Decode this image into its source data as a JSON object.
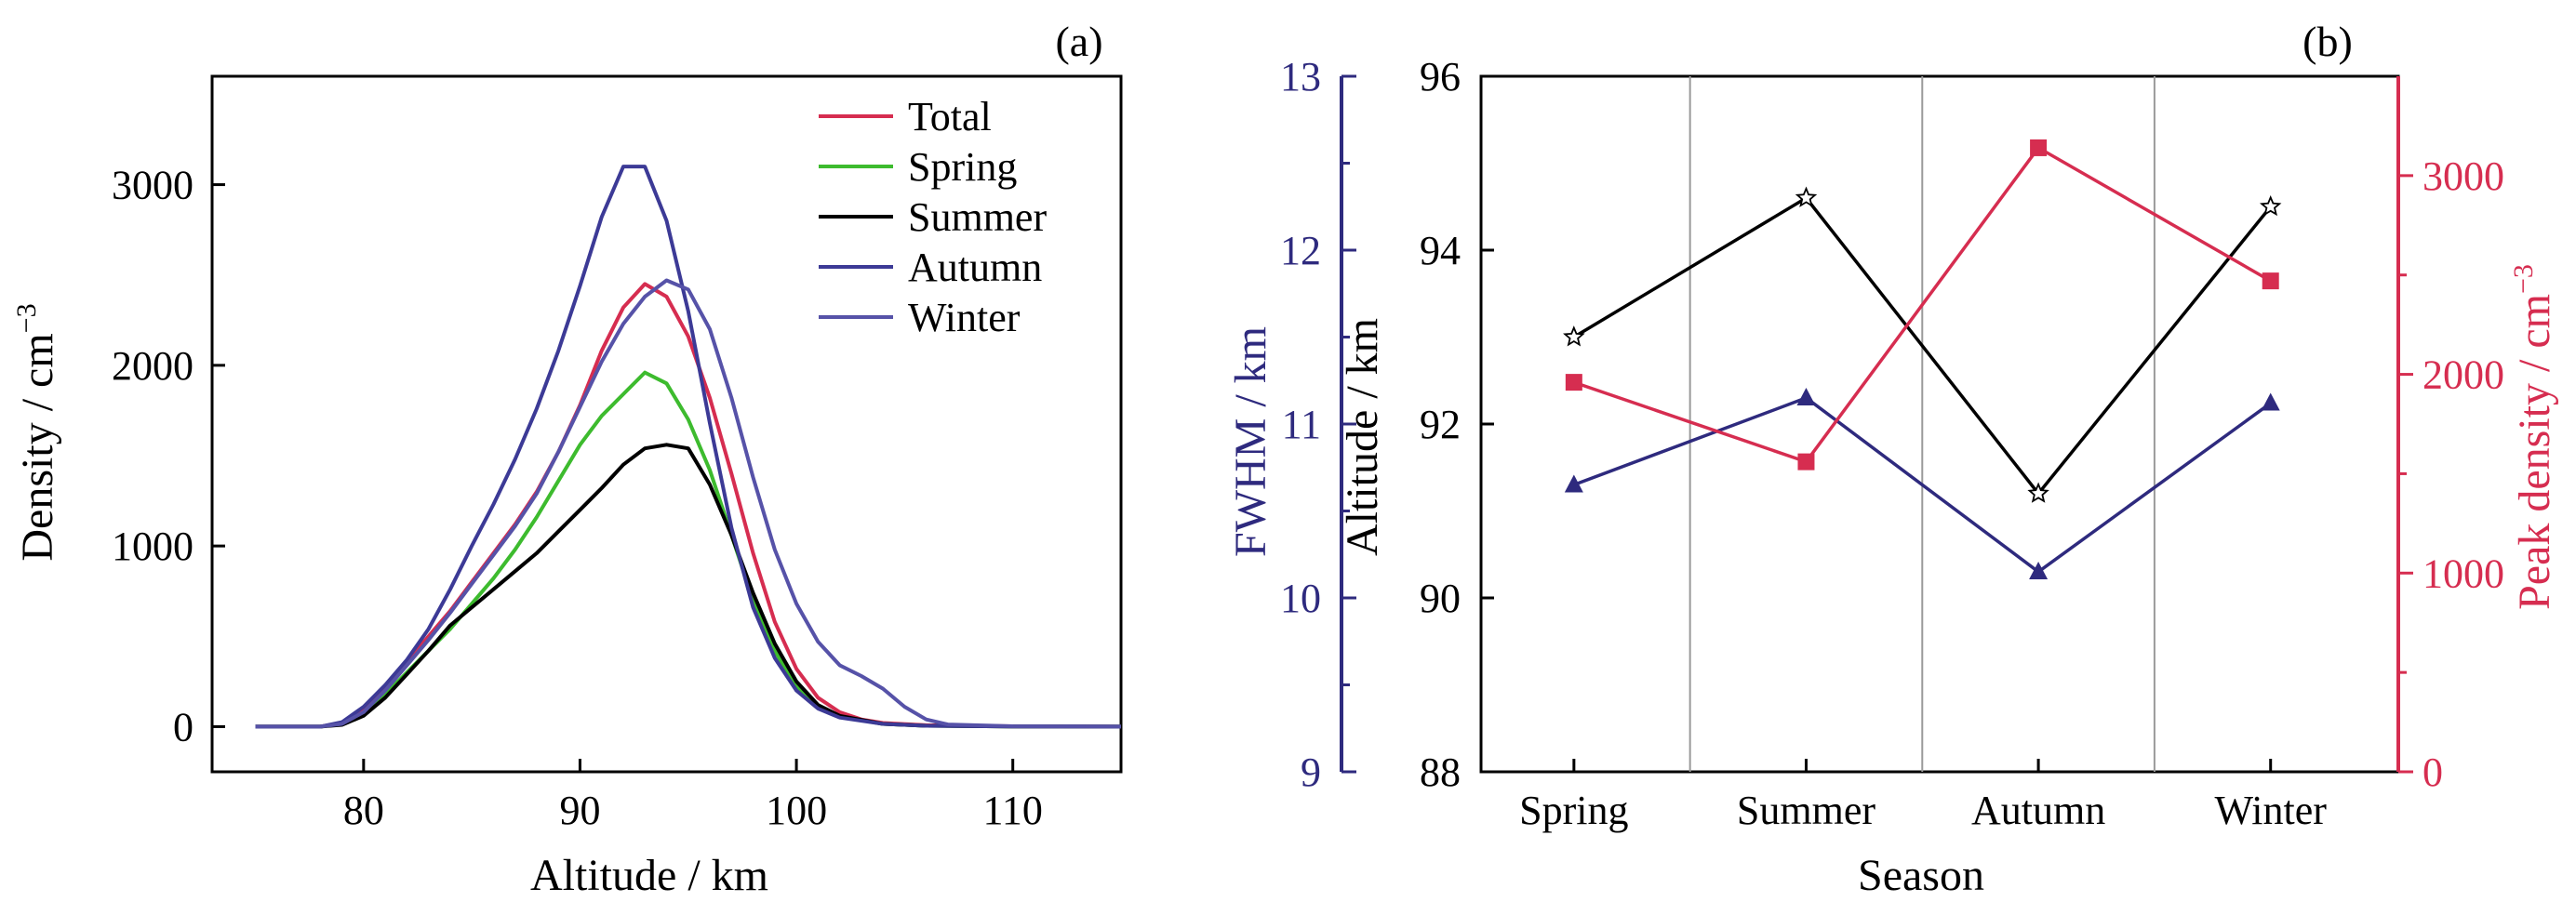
{
  "chart_data": [
    {
      "type": "line",
      "panel_label": "(a)",
      "xlabel": "Altitude / km",
      "ylabel_main": "Density / cm",
      "ylabel_sup": "−3",
      "xlim": [
        73,
        115
      ],
      "ylim": [
        -250,
        3600
      ],
      "xticks": [
        80,
        90,
        100,
        110
      ],
      "yticks": [
        0,
        1000,
        2000,
        3000
      ],
      "legend_position": "top-right",
      "series": [
        {
          "name": "Total",
          "color": "#d62d50",
          "points": [
            [
              75,
              0
            ],
            [
              78,
              0
            ],
            [
              79,
              20
            ],
            [
              80,
              90
            ],
            [
              81,
              220
            ],
            [
              82,
              360
            ],
            [
              83,
              500
            ],
            [
              84,
              640
            ],
            [
              85,
              800
            ],
            [
              86,
              960
            ],
            [
              87,
              1120
            ],
            [
              88,
              1300
            ],
            [
              89,
              1520
            ],
            [
              90,
              1780
            ],
            [
              91,
              2080
            ],
            [
              92,
              2320
            ],
            [
              93,
              2450
            ],
            [
              94,
              2380
            ],
            [
              95,
              2160
            ],
            [
              96,
              1820
            ],
            [
              97,
              1400
            ],
            [
              98,
              960
            ],
            [
              99,
              580
            ],
            [
              100,
              320
            ],
            [
              101,
              160
            ],
            [
              102,
              80
            ],
            [
              103,
              40
            ],
            [
              104,
              20
            ],
            [
              106,
              8
            ],
            [
              110,
              2
            ],
            [
              115,
              0
            ]
          ]
        },
        {
          "name": "Spring",
          "color": "#3dbb2e",
          "points": [
            [
              75,
              0
            ],
            [
              78,
              0
            ],
            [
              79,
              15
            ],
            [
              80,
              70
            ],
            [
              81,
              180
            ],
            [
              82,
              300
            ],
            [
              83,
              420
            ],
            [
              84,
              540
            ],
            [
              85,
              680
            ],
            [
              86,
              820
            ],
            [
              87,
              980
            ],
            [
              88,
              1160
            ],
            [
              89,
              1360
            ],
            [
              90,
              1560
            ],
            [
              91,
              1720
            ],
            [
              92,
              1840
            ],
            [
              93,
              1960
            ],
            [
              94,
              1900
            ],
            [
              95,
              1700
            ],
            [
              96,
              1420
            ],
            [
              97,
              1060
            ],
            [
              98,
              700
            ],
            [
              99,
              420
            ],
            [
              100,
              220
            ],
            [
              101,
              110
            ],
            [
              102,
              55
            ],
            [
              104,
              15
            ],
            [
              106,
              5
            ],
            [
              110,
              1
            ],
            [
              115,
              0
            ]
          ]
        },
        {
          "name": "Summer",
          "color": "#000000",
          "points": [
            [
              75,
              0
            ],
            [
              78,
              0
            ],
            [
              79,
              10
            ],
            [
              80,
              60
            ],
            [
              81,
              160
            ],
            [
              82,
              290
            ],
            [
              83,
              420
            ],
            [
              84,
              560
            ],
            [
              85,
              660
            ],
            [
              86,
              760
            ],
            [
              87,
              860
            ],
            [
              88,
              960
            ],
            [
              89,
              1080
            ],
            [
              90,
              1200
            ],
            [
              91,
              1320
            ],
            [
              92,
              1450
            ],
            [
              93,
              1540
            ],
            [
              94,
              1560
            ],
            [
              95,
              1540
            ],
            [
              96,
              1340
            ],
            [
              97,
              1060
            ],
            [
              98,
              740
            ],
            [
              99,
              460
            ],
            [
              100,
              250
            ],
            [
              101,
              120
            ],
            [
              102,
              60
            ],
            [
              104,
              15
            ],
            [
              106,
              5
            ],
            [
              110,
              1
            ],
            [
              115,
              0
            ]
          ]
        },
        {
          "name": "Autumn",
          "color": "#3c3a96",
          "points": [
            [
              75,
              0
            ],
            [
              78,
              0
            ],
            [
              79,
              25
            ],
            [
              80,
              110
            ],
            [
              81,
              230
            ],
            [
              82,
              370
            ],
            [
              83,
              540
            ],
            [
              84,
              760
            ],
            [
              85,
              1000
            ],
            [
              86,
              1230
            ],
            [
              87,
              1480
            ],
            [
              88,
              1760
            ],
            [
              89,
              2080
            ],
            [
              90,
              2440
            ],
            [
              91,
              2820
            ],
            [
              92,
              3100
            ],
            [
              93,
              3100
            ],
            [
              94,
              2800
            ],
            [
              95,
              2300
            ],
            [
              96,
              1680
            ],
            [
              97,
              1100
            ],
            [
              98,
              660
            ],
            [
              99,
              380
            ],
            [
              100,
              200
            ],
            [
              101,
              100
            ],
            [
              102,
              50
            ],
            [
              104,
              15
            ],
            [
              106,
              5
            ],
            [
              110,
              1
            ],
            [
              115,
              0
            ]
          ]
        },
        {
          "name": "Winter",
          "color": "#5652a8",
          "points": [
            [
              75,
              0
            ],
            [
              78,
              0
            ],
            [
              79,
              15
            ],
            [
              80,
              80
            ],
            [
              81,
              200
            ],
            [
              82,
              340
            ],
            [
              83,
              480
            ],
            [
              84,
              630
            ],
            [
              85,
              790
            ],
            [
              86,
              950
            ],
            [
              87,
              1110
            ],
            [
              88,
              1290
            ],
            [
              89,
              1520
            ],
            [
              90,
              1770
            ],
            [
              91,
              2020
            ],
            [
              92,
              2230
            ],
            [
              93,
              2380
            ],
            [
              94,
              2470
            ],
            [
              95,
              2420
            ],
            [
              96,
              2200
            ],
            [
              97,
              1820
            ],
            [
              98,
              1380
            ],
            [
              99,
              980
            ],
            [
              100,
              680
            ],
            [
              101,
              470
            ],
            [
              102,
              340
            ],
            [
              103,
              280
            ],
            [
              104,
              210
            ],
            [
              105,
              110
            ],
            [
              106,
              40
            ],
            [
              107,
              12
            ],
            [
              110,
              2
            ],
            [
              115,
              0
            ]
          ]
        }
      ]
    },
    {
      "type": "line",
      "panel_label": "(b)",
      "xlabel": "Season",
      "categories": [
        "Spring",
        "Summer",
        "Autumn",
        "Winter"
      ],
      "xlim": [
        -0.4,
        3.55
      ],
      "axes": {
        "fwhm": {
          "label": "FWHM / km",
          "range": [
            9,
            13
          ],
          "ticks": [
            9,
            10,
            11,
            12,
            13
          ],
          "color": "#2e2a7e"
        },
        "altitude": {
          "label": "Altitude / km",
          "range": [
            88,
            96
          ],
          "ticks": [
            88,
            90,
            92,
            94,
            96
          ],
          "color": "#000000"
        },
        "density": {
          "label": "Peak density / cm",
          "label_sup": "−3",
          "range": [
            0,
            3500
          ],
          "ticks": [
            0,
            1000,
            2000,
            3000
          ],
          "color": "#d62d50"
        }
      },
      "series": [
        {
          "axis": "altitude",
          "marker": "star",
          "color": "#000000",
          "values": [
            93.0,
            94.6,
            91.2,
            94.5
          ]
        },
        {
          "axis": "fwhm",
          "marker": "triangle",
          "color": "#2e2a7e",
          "values": [
            10.65,
            11.15,
            10.15,
            11.12
          ]
        },
        {
          "axis": "density",
          "marker": "square",
          "color": "#d62d50",
          "values": [
            1960,
            1560,
            3140,
            2470
          ]
        }
      ]
    }
  ]
}
